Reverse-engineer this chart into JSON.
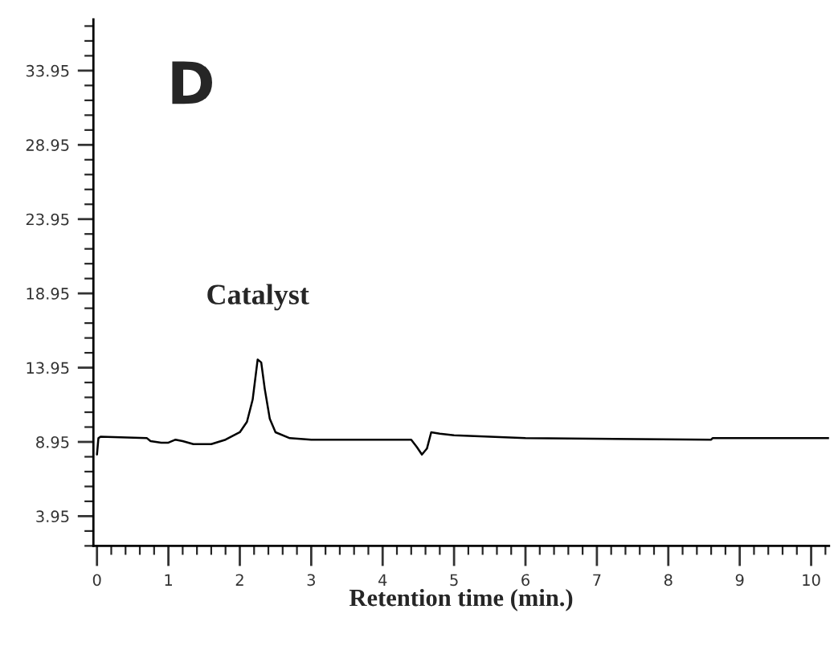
{
  "chart_data": {
    "type": "line",
    "xlabel": "Retention time (min.)",
    "annotations": [
      "D",
      {
        "text": "Catalyst",
        "x": 2.25,
        "y": 14.5
      }
    ],
    "x": [
      0,
      0.02,
      0.05,
      0.7,
      0.75,
      0.9,
      1.0,
      1.1,
      1.2,
      1.35,
      1.6,
      1.8,
      2.0,
      2.1,
      2.18,
      2.25,
      2.3,
      2.35,
      2.42,
      2.5,
      2.7,
      3.0,
      3.5,
      4.4,
      4.48,
      4.55,
      4.62,
      4.68,
      4.8,
      5.0,
      6.0,
      8.6,
      8.62,
      10.25
    ],
    "series": [
      {
        "color": "#000000",
        "values": [
          8.1,
          9.2,
          9.3,
          9.2,
          9.0,
          8.9,
          8.9,
          9.1,
          9.0,
          8.8,
          8.8,
          9.1,
          9.6,
          10.3,
          11.8,
          14.5,
          14.3,
          12.5,
          10.5,
          9.6,
          9.2,
          9.1,
          9.1,
          9.1,
          8.6,
          8.1,
          8.5,
          9.6,
          9.5,
          9.4,
          9.2,
          9.1,
          9.2,
          9.2
        ]
      }
    ],
    "xlim": [
      -0.05,
      10.25
    ],
    "ylim": [
      1.95,
      37.4
    ],
    "xticks": [
      0,
      1,
      2,
      3,
      4,
      5,
      6,
      7,
      8,
      9,
      10
    ],
    "yticks": [
      3.95,
      8.95,
      13.95,
      18.95,
      23.95,
      28.95,
      33.95
    ],
    "grid": false,
    "legend": false,
    "marker": "none",
    "line_style": "solid"
  }
}
